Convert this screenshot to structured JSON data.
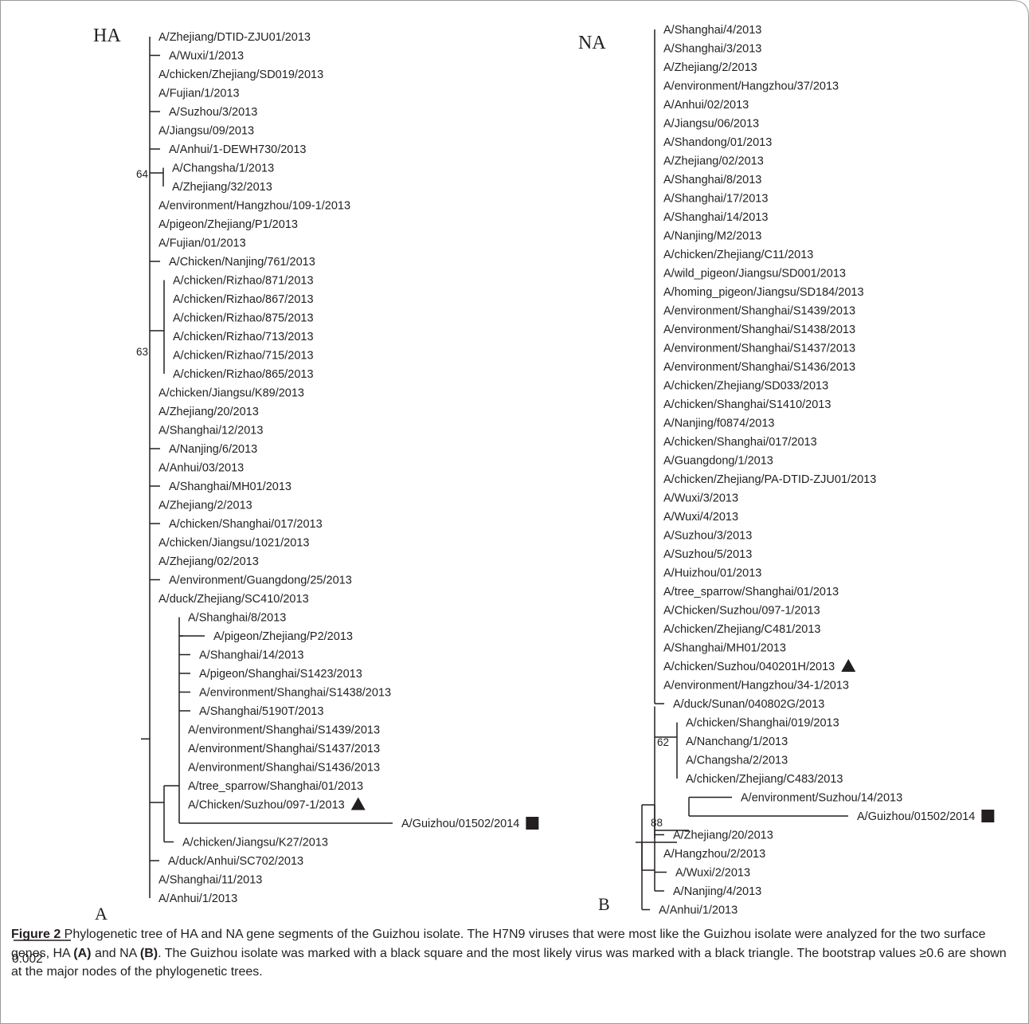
{
  "figure": {
    "caption_label": "Figure 2",
    "caption_parts": [
      {
        "t": " Phylogenetic tree of HA and NA gene segments of the Guizhou isolate. The H7N9 viruses that were most like the Guizhou isolate were analyzed for the two surface genes, HA ",
        "b": false
      },
      {
        "t": "(A)",
        "b": true
      },
      {
        "t": " and NA ",
        "b": false
      },
      {
        "t": "(B)",
        "b": true
      },
      {
        "t": ". The Guizhou isolate was marked with a black square and the most likely virus was marked with a black triangle. The bootstrap values ≥0.6 are shown at the major nodes of the phylogenetic trees.",
        "b": false
      }
    ],
    "scale_bar_label": "0.002",
    "colors": {
      "ink": "#231f20",
      "frame": "#9a9a9a"
    }
  },
  "ha": {
    "title": "HA",
    "letter": "A",
    "taxa": [
      "A/Zhejiang/DTID-ZJU01/2013",
      "A/Wuxi/1/2013",
      "A/chicken/Zhejiang/SD019/2013",
      "A/Fujian/1/2013",
      "A/Suzhou/3/2013",
      "A/Jiangsu/09/2013",
      "A/Anhui/1-DEWH730/2013",
      "A/Changsha/1/2013",
      "A/Zhejiang/32/2013",
      "A/environment/Hangzhou/109-1/2013",
      "A/pigeon/Zhejiang/P1/2013",
      "A/Fujian/01/2013",
      "A/Chicken/Nanjing/761/2013",
      "A/chicken/Rizhao/871/2013",
      "A/chicken/Rizhao/867/2013",
      "A/chicken/Rizhao/875/2013",
      "A/chicken/Rizhao/713/2013",
      "A/chicken/Rizhao/715/2013",
      "A/chicken/Rizhao/865/2013",
      "A/chicken/Jiangsu/K89/2013",
      "A/Zhejiang/20/2013",
      "A/Shanghai/12/2013",
      "A/Nanjing/6/2013",
      "A/Anhui/03/2013",
      "A/Shanghai/MH01/2013",
      "A/Zhejiang/2/2013",
      "A/chicken/Shanghai/017/2013",
      "A/chicken/Jiangsu/1021/2013",
      "A/Zhejiang/02/2013",
      "A/environment/Guangdong/25/2013",
      "A/duck/Zhejiang/SC410/2013",
      "A/Shanghai/8/2013",
      "A/pigeon/Zhejiang/P2/2013",
      "A/Shanghai/14/2013",
      "A/pigeon/Shanghai/S1423/2013",
      "A/environment/Shanghai/S1438/2013",
      "A/Shanghai/5190T/2013",
      "A/environment/Shanghai/S1439/2013",
      "A/environment/Shanghai/S1437/2013",
      "A/environment/Shanghai/S1436/2013",
      "A/tree_sparrow/Shanghai/01/2013",
      "A/Chicken/Suzhou/097-1/2013",
      "A/Guizhou/01502/2014",
      "A/chicken/Jiangsu/K27/2013",
      "A/duck/Anhui/SC702/2013",
      "A/Shanghai/11/2013",
      "A/Anhui/1/2013"
    ],
    "bootstrap": [
      "64",
      "63"
    ],
    "markers": {
      "triangle": "A/Chicken/Suzhou/097-1/2013",
      "square": "A/Guizhou/01502/2014"
    }
  },
  "na": {
    "title": "NA",
    "letter": "B",
    "taxa": [
      "A/Shanghai/4/2013",
      "A/Shanghai/3/2013",
      "A/Zhejiang/2/2013",
      "A/environment/Hangzhou/37/2013",
      "A/Anhui/02/2013",
      "A/Jiangsu/06/2013",
      "A/Shandong/01/2013",
      "A/Zhejiang/02/2013",
      "A/Shanghai/8/2013",
      "A/Shanghai/17/2013",
      "A/Shanghai/14/2013",
      "A/Nanjing/M2/2013",
      "A/chicken/Zhejiang/C11/2013",
      "A/wild_pigeon/Jiangsu/SD001/2013",
      "A/homing_pigeon/Jiangsu/SD184/2013",
      "A/environment/Shanghai/S1439/2013",
      "A/environment/Shanghai/S1438/2013",
      "A/environment/Shanghai/S1437/2013",
      "A/environment/Shanghai/S1436/2013",
      "A/chicken/Zhejiang/SD033/2013",
      "A/chicken/Shanghai/S1410/2013",
      "A/Nanjing/f0874/2013",
      "A/chicken/Shanghai/017/2013",
      "A/Guangdong/1/2013",
      "A/chicken/Zhejiang/PA-DTID-ZJU01/2013",
      "A/Wuxi/3/2013",
      "A/Wuxi/4/2013",
      "A/Suzhou/3/2013",
      "A/Suzhou/5/2013",
      "A/Huizhou/01/2013",
      "A/tree_sparrow/Shanghai/01/2013",
      "A/Chicken/Suzhou/097-1/2013",
      "A/chicken/Zhejiang/C481/2013",
      "A/Shanghai/MH01/2013",
      "A/chicken/Suzhou/040201H/2013",
      "A/environment/Hangzhou/34-1/2013",
      "A/duck/Sunan/040802G/2013",
      "A/chicken/Shanghai/019/2013",
      "A/Nanchang/1/2013",
      "A/Changsha/2/2013",
      "A/chicken/Zhejiang/C483/2013",
      "A/environment/Suzhou/14/2013",
      "A/Guizhou/01502/2014",
      "A/Zhejiang/20/2013",
      "A/Hangzhou/2/2013",
      "A/Wuxi/2/2013",
      "A/Nanjing/4/2013",
      "A/Anhui/1/2013"
    ],
    "bootstrap": [
      "62",
      "88"
    ],
    "markers": {
      "triangle": "A/chicken/Suzhou/040201H/2013",
      "square": "A/Guizhou/01502/2014"
    }
  }
}
